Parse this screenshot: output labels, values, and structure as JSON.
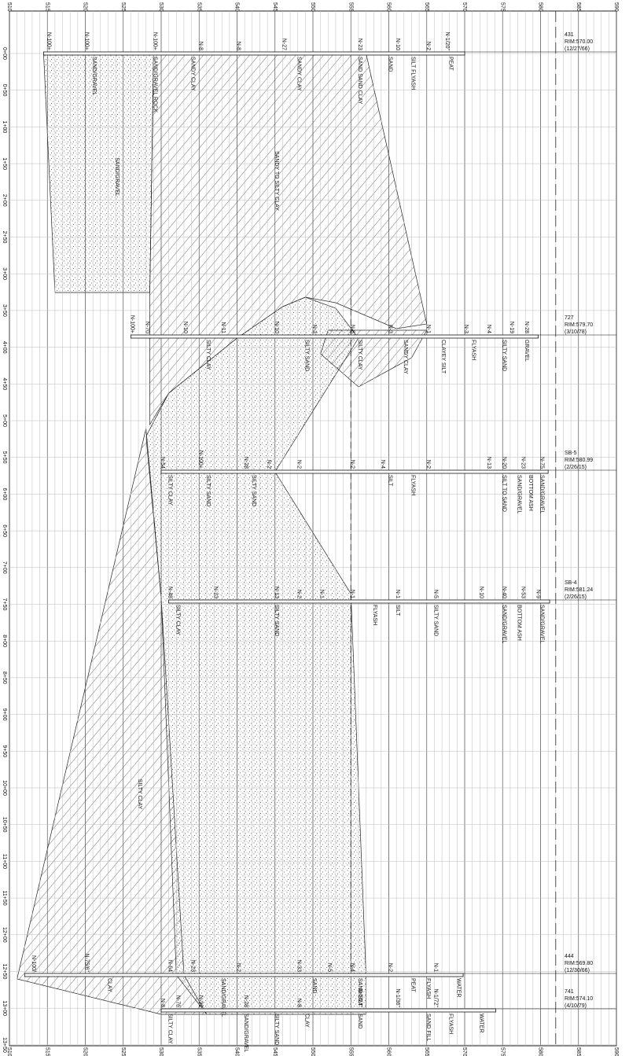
{
  "axes": {
    "elevation_ticks": [
      510,
      515,
      520,
      525,
      530,
      535,
      540,
      545,
      550,
      555,
      560,
      565,
      570,
      575,
      580,
      585,
      590
    ],
    "station_ticks": [
      "0+00",
      "0+50",
      "1+00",
      "1+50",
      "2+00",
      "2+50",
      "3+00",
      "3+50",
      "4+00",
      "4+50",
      "5+00",
      "5+50",
      "6+00",
      "6+50",
      "7+00",
      "7+50",
      "8+00",
      "8+50",
      "9+00",
      "9+50",
      "10+00",
      "10+50",
      "11+00",
      "11+50",
      "12+00",
      "12+50",
      "13+00",
      "13+50"
    ]
  },
  "region_labels": [
    "SANDY TO SILTY CLAY",
    "SAND/GRAVEL",
    "SILTY CLAY"
  ],
  "borings": [
    {
      "id": "431",
      "rim": "RIM:570.00",
      "date": "(12/27/66)",
      "n_values": [
        "N-1/20\"",
        "N-2",
        "N-10",
        "N-23",
        "N-27",
        "N-8",
        "N-8",
        "N-100+",
        "N-100+",
        "N-100+"
      ],
      "soils": [
        "PEAT",
        "SILT FLYASH",
        "SAND",
        "SAND SAND CLAY",
        "SANDY CLAY",
        "SANDY CLAY",
        "SAND/GRAVEL ROCK",
        "SAND/GRAVEL"
      ]
    },
    {
      "id": "727",
      "rim": "RIM:579.70",
      "date": "(3/10/78)",
      "n_values": [
        "N-28",
        "N-19",
        "N-4",
        "N-3",
        "N-1",
        "N-3",
        "N-8",
        "N-3",
        "N-10",
        "N-11",
        "N-10",
        "N-70",
        "N-100+"
      ],
      "soils": [
        "GRAVEL",
        "SILTY SAND",
        "FLYASH",
        "CLAYEY SILT",
        "SANDY CLAY",
        "SILTY CLAY",
        "SILTY SAND",
        "SILTY CLAY"
      ]
    },
    {
      "id": "SB-5",
      "rim": "RIM:580.99",
      "date": "(2/26/15)",
      "n_values": [
        "N-75",
        "N-23",
        "N-20",
        "N-13",
        "N-2",
        "N-4",
        "N-2",
        "N-2",
        "N-2",
        "N-28",
        "N-100+",
        "N-54"
      ],
      "soils": [
        "SAND/GRAVEL",
        "BOTTOM ASH",
        "SAND/GRAVEL",
        "SILT TO SAND",
        "FLYASH",
        "SILT",
        "SILTY SAND",
        "SILTY SAND",
        "SILTY CLAY"
      ]
    },
    {
      "id": "SB-4",
      "rim": "RIM:581.24",
      "date": "(2/26/15)",
      "n_values": [
        "N-9",
        "N-53",
        "N-40",
        "N-10",
        "N-5",
        "N-1",
        "N-1",
        "N-1",
        "N-2",
        "N-13",
        "N-23",
        "N-48"
      ],
      "soils": [
        "SAND/GRAVEL",
        "BOTTOM ASH",
        "SAND/GRAVEL",
        "SILTY SAND",
        "SILT",
        "FLYASH",
        "SILTY SAND",
        "SILTY CLAY"
      ]
    },
    {
      "id": "444",
      "rim": "RIM:569.80",
      "date": "(12/30/66)",
      "n_values": [
        "N-1",
        "N-2",
        "N-4",
        "N-5",
        "N-33",
        "N-2",
        "N-23",
        "N-64",
        "N-75/6\"",
        "N-100/"
      ],
      "soils": [
        "WATER",
        "FLYASH",
        "PEAT",
        "SAND/SILT",
        "SAND",
        "SAND/GRAVEL",
        "CLAY"
      ]
    },
    {
      "id": "741",
      "rim": "RIM:574.10",
      "date": "(4/10/79)",
      "n_values": [
        "N-1/72\"",
        "N-1/36\"",
        "N-1/24\"",
        "N-8",
        "N-28",
        "N-92",
        "N-76",
        "N-8"
      ],
      "soils": [
        "WATER",
        "FLYASH",
        "SAND FILL",
        "SAND",
        "CLAY",
        "SILTY SAND",
        "SAND/GRAVEL",
        "SILTY CLAY"
      ]
    }
  ]
}
